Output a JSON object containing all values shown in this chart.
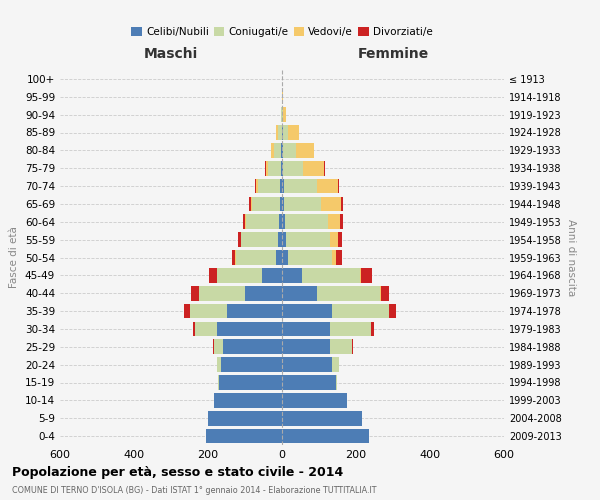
{
  "age_groups": [
    "0-4",
    "5-9",
    "10-14",
    "15-19",
    "20-24",
    "25-29",
    "30-34",
    "35-39",
    "40-44",
    "45-49",
    "50-54",
    "55-59",
    "60-64",
    "65-69",
    "70-74",
    "75-79",
    "80-84",
    "85-89",
    "90-94",
    "95-99",
    "100+"
  ],
  "birth_years": [
    "2009-2013",
    "2004-2008",
    "1999-2003",
    "1994-1998",
    "1989-1993",
    "1984-1988",
    "1979-1983",
    "1974-1978",
    "1969-1973",
    "1964-1968",
    "1959-1963",
    "1954-1958",
    "1949-1953",
    "1944-1948",
    "1939-1943",
    "1934-1938",
    "1929-1933",
    "1924-1928",
    "1919-1923",
    "1914-1918",
    "≤ 1913"
  ],
  "male_celibe": [
    205,
    200,
    185,
    170,
    165,
    160,
    175,
    150,
    100,
    55,
    15,
    10,
    8,
    5,
    5,
    3,
    2,
    1,
    0,
    0,
    0
  ],
  "male_coniugato": [
    0,
    0,
    0,
    2,
    10,
    25,
    60,
    100,
    125,
    120,
    110,
    100,
    90,
    75,
    60,
    35,
    20,
    10,
    2,
    0,
    0
  ],
  "male_vedovo": [
    0,
    0,
    0,
    0,
    0,
    0,
    0,
    0,
    0,
    0,
    1,
    2,
    3,
    5,
    5,
    5,
    8,
    4,
    1,
    0,
    0
  ],
  "male_divorziato": [
    0,
    0,
    0,
    0,
    0,
    2,
    5,
    15,
    20,
    22,
    10,
    8,
    5,
    3,
    2,
    2,
    0,
    0,
    0,
    0,
    0
  ],
  "female_nubile": [
    235,
    215,
    175,
    145,
    135,
    130,
    130,
    135,
    95,
    55,
    15,
    10,
    8,
    5,
    5,
    3,
    2,
    2,
    0,
    0,
    0
  ],
  "female_coniugata": [
    0,
    0,
    0,
    3,
    20,
    60,
    110,
    155,
    170,
    155,
    120,
    120,
    115,
    100,
    90,
    55,
    35,
    15,
    2,
    0,
    0
  ],
  "female_vedova": [
    0,
    0,
    0,
    0,
    0,
    0,
    0,
    0,
    2,
    3,
    10,
    20,
    35,
    55,
    55,
    55,
    50,
    30,
    8,
    2,
    0
  ],
  "female_divorziata": [
    0,
    0,
    0,
    0,
    0,
    2,
    8,
    18,
    22,
    30,
    18,
    12,
    8,
    5,
    3,
    2,
    0,
    0,
    0,
    0,
    0
  ],
  "color_celibe": "#4d7db5",
  "color_coniugato": "#c8d9a5",
  "color_vedovo": "#f5c96a",
  "color_divorziato": "#cc2222",
  "title": "Popolazione per età, sesso e stato civile - 2014",
  "subtitle": "COMUNE DI TERNO D'ISOLA (BG) - Dati ISTAT 1° gennaio 2014 - Elaborazione TUTTITALIA.IT",
  "label_maschi": "Maschi",
  "label_femmine": "Femmine",
  "label_fasce": "Fasce di età",
  "label_anni": "Anni di nascita",
  "legend_celibe": "Celibi/Nubili",
  "legend_coniugato": "Coniugati/e",
  "legend_vedovo": "Vedovi/e",
  "legend_divorziato": "Divorziati/e",
  "xlim": 600
}
